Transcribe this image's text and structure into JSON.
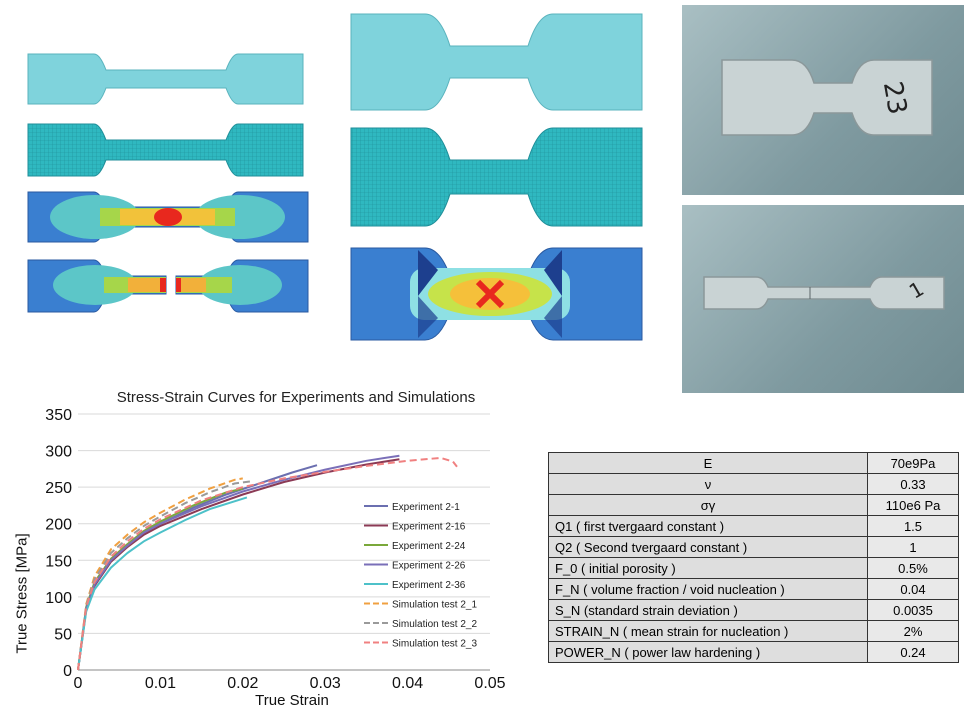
{
  "chart_data": {
    "type": "line",
    "title": "Stress-Strain Curves for Experiments and Simulations",
    "xlabel": "True Strain",
    "ylabel": "True Stress [MPa]",
    "xlim": [
      0,
      0.05
    ],
    "ylim": [
      0,
      350
    ],
    "xticks": [
      "0",
      "0.01",
      "0.02",
      "0.03",
      "0.04",
      "0.05"
    ],
    "yticks": [
      "0",
      "50",
      "100",
      "150",
      "200",
      "250",
      "300",
      "350"
    ],
    "grid": "horizontal",
    "legend_position": "right",
    "series": [
      {
        "name": "Experiment 2-1",
        "color": "#6b6fb0",
        "style": "solid",
        "x": [
          0,
          0.001,
          0.002,
          0.004,
          0.006,
          0.008,
          0.01,
          0.014,
          0.018,
          0.022,
          0.026,
          0.029
        ],
        "y": [
          0,
          85,
          118,
          150,
          170,
          188,
          200,
          222,
          240,
          255,
          270,
          280
        ]
      },
      {
        "name": "Experiment 2-16",
        "color": "#8b3a55",
        "style": "solid",
        "x": [
          0,
          0.001,
          0.002,
          0.004,
          0.006,
          0.008,
          0.01,
          0.015,
          0.02,
          0.025,
          0.03,
          0.035,
          0.039
        ],
        "y": [
          0,
          82,
          115,
          148,
          168,
          185,
          197,
          220,
          240,
          257,
          270,
          281,
          288
        ]
      },
      {
        "name": "Experiment 2-24",
        "color": "#7aa83a",
        "style": "solid",
        "x": [
          0,
          0.001,
          0.002,
          0.004,
          0.006,
          0.008,
          0.01,
          0.014,
          0.018,
          0.02
        ],
        "y": [
          0,
          86,
          120,
          152,
          172,
          190,
          203,
          225,
          243,
          248
        ]
      },
      {
        "name": "Experiment 2-26",
        "color": "#7a6fb8",
        "style": "solid",
        "x": [
          0,
          0.001,
          0.002,
          0.004,
          0.006,
          0.008,
          0.01,
          0.015,
          0.02,
          0.025,
          0.03,
          0.035,
          0.039
        ],
        "y": [
          0,
          84,
          117,
          150,
          170,
          188,
          200,
          224,
          244,
          260,
          274,
          286,
          293
        ]
      },
      {
        "name": "Experiment 2-36",
        "color": "#4dc1c9",
        "style": "solid",
        "x": [
          0,
          0.001,
          0.002,
          0.004,
          0.006,
          0.008,
          0.01,
          0.013,
          0.016,
          0.0205
        ],
        "y": [
          0,
          80,
          110,
          140,
          160,
          176,
          188,
          205,
          220,
          236
        ]
      },
      {
        "name": "Simulation test 2_1",
        "color": "#f0a040",
        "style": "dashed",
        "x": [
          0,
          0.001,
          0.002,
          0.004,
          0.006,
          0.008,
          0.01,
          0.013,
          0.016,
          0.019,
          0.02
        ],
        "y": [
          0,
          90,
          128,
          165,
          185,
          202,
          215,
          233,
          248,
          260,
          262
        ]
      },
      {
        "name": "Simulation test 2_2",
        "color": "#9a9a9a",
        "style": "dashed",
        "x": [
          0,
          0.001,
          0.002,
          0.004,
          0.006,
          0.008,
          0.01,
          0.013,
          0.016,
          0.019,
          0.021
        ],
        "y": [
          0,
          88,
          124,
          160,
          180,
          197,
          210,
          228,
          243,
          255,
          258
        ]
      },
      {
        "name": "Simulation test 2_3",
        "color": "#f08080",
        "style": "dashed",
        "x": [
          0,
          0.001,
          0.002,
          0.004,
          0.006,
          0.008,
          0.01,
          0.015,
          0.02,
          0.025,
          0.03,
          0.035,
          0.04,
          0.044,
          0.0455,
          0.046
        ],
        "y": [
          0,
          86,
          120,
          155,
          176,
          193,
          206,
          232,
          250,
          262,
          271,
          279,
          286,
          290,
          285,
          278
        ]
      }
    ]
  },
  "parameter_table": {
    "rows": [
      {
        "name": "E",
        "value": "70e9Pa"
      },
      {
        "name": "ν",
        "value": "0.33"
      },
      {
        "name": "σγ",
        "value": "110e6 Pa"
      },
      {
        "name": "Q1 ( first tvergaard constant )",
        "value": "1.5"
      },
      {
        "name": "Q2 ( Second tvergaard constant )",
        "value": "1"
      },
      {
        "name": "F_0 ( initial porosity )",
        "value": "0.5%"
      },
      {
        "name": "F_N ( volume fraction / void nucleation  )",
        "value": "0.04"
      },
      {
        "name": "S_N (standard strain deviation )",
        "value": "0.0035"
      },
      {
        "name": "STRAIN_N  ( mean strain for nucleation )",
        "value": "2%"
      },
      {
        "name": "POWER_N ( power law hardening )",
        "value": "0.24"
      }
    ]
  },
  "photos": {
    "specimen_top_label": "23",
    "specimen_bottom_label": "1"
  }
}
